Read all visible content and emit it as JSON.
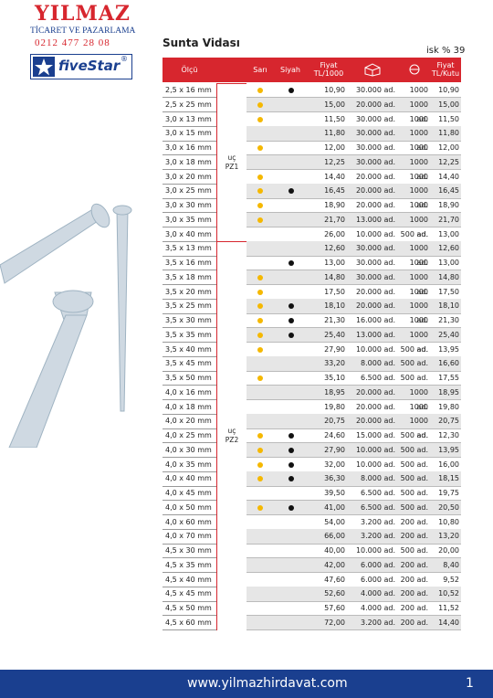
{
  "header": {
    "brand": "YILMAZ",
    "subtitle": "TİCARET VE PAZARLAMA",
    "phone": "0212 477 28 08",
    "logo": "fiveStar",
    "logo_mark": "®"
  },
  "title": "Sunta Vidası",
  "discount": "isk % 39",
  "table": {
    "columns": {
      "size": "Ölçü",
      "yellow": "Sarı",
      "black": "Siyah",
      "price_per_1000": "Fiyat TL/1000",
      "price_per_box": "Fiyat TL/Kutu"
    },
    "groups": [
      {
        "label": "uç",
        "code": "PZ1",
        "rows": [
          [
            "2,5 x 16 mm",
            true,
            true,
            "10,90",
            "30.000 ad.",
            "1000 ad.",
            "10,90"
          ],
          [
            "2,5 x 25 mm",
            true,
            false,
            "15,00",
            "20.000 ad.",
            "1000 ad.",
            "15,00"
          ],
          [
            "3,0 x 13 mm",
            true,
            false,
            "11,50",
            "30.000 ad.",
            "1000 ad.",
            "11,50"
          ],
          [
            "3,0 x 15 mm",
            false,
            false,
            "11,80",
            "30.000 ad.",
            "1000 ad.",
            "11,80"
          ],
          [
            "3,0 x 16 mm",
            true,
            false,
            "12,00",
            "30.000 ad.",
            "1000 ad.",
            "12,00"
          ],
          [
            "3,0 x 18 mm",
            false,
            false,
            "12,25",
            "30.000 ad.",
            "1000 ad.",
            "12,25"
          ],
          [
            "3,0 x 20 mm",
            true,
            false,
            "14,40",
            "20.000 ad.",
            "1000 ad.",
            "14,40"
          ],
          [
            "3,0 x 25 mm",
            true,
            true,
            "16,45",
            "20.000 ad.",
            "1000 ad.",
            "16,45"
          ],
          [
            "3,0 x 30 mm",
            true,
            false,
            "18,90",
            "20.000 ad.",
            "1000 ad.",
            "18,90"
          ],
          [
            "3,0 x 35 mm",
            true,
            false,
            "21,70",
            "13.000 ad.",
            "1000 ad.",
            "21,70"
          ],
          [
            "3,0 x 40 mm",
            false,
            false,
            "26,00",
            "10.000 ad.",
            "500 ad.",
            "13,00"
          ]
        ]
      },
      {
        "label": "uç",
        "code": "PZ2",
        "rows": [
          [
            "3,5 x 13 mm",
            false,
            false,
            "12,60",
            "30.000 ad.",
            "1000 ad.",
            "12,60"
          ],
          [
            "3,5 x 16 mm",
            false,
            true,
            "13,00",
            "30.000 ad.",
            "1000 ad.",
            "13,00"
          ],
          [
            "3,5 x 18 mm",
            true,
            false,
            "14,80",
            "30.000 ad.",
            "1000 ad.",
            "14,80"
          ],
          [
            "3,5 x 20 mm",
            true,
            false,
            "17,50",
            "20.000 ad.",
            "1000 ad.",
            "17,50"
          ],
          [
            "3,5 x 25 mm",
            true,
            true,
            "18,10",
            "20.000 ad.",
            "1000 ad.",
            "18,10"
          ],
          [
            "3,5 x 30 mm",
            true,
            true,
            "21,30",
            "16.000 ad.",
            "1000 ad.",
            "21,30"
          ],
          [
            "3,5 x 35 mm",
            true,
            true,
            "25,40",
            "13.000 ad.",
            "1000 ad.",
            "25,40"
          ],
          [
            "3,5 x 40 mm",
            true,
            false,
            "27,90",
            "10.000 ad.",
            "500 ad.",
            "13,95"
          ],
          [
            "3,5 x 45 mm",
            false,
            false,
            "33,20",
            "8.000 ad.",
            "500 ad.",
            "16,60"
          ],
          [
            "3,5 x 50 mm",
            true,
            false,
            "35,10",
            "6.500 ad.",
            "500 ad.",
            "17,55"
          ],
          [
            "4,0 x 16 mm",
            false,
            false,
            "18,95",
            "20.000 ad.",
            "1000 ad.",
            "18,95"
          ],
          [
            "4,0 x 18 mm",
            false,
            false,
            "19,80",
            "20.000 ad.",
            "1000 ad.",
            "19,80"
          ],
          [
            "4,0 x 20 mm",
            false,
            false,
            "20,75",
            "20.000 ad.",
            "1000 ad.",
            "20,75"
          ],
          [
            "4,0 x 25 mm",
            true,
            true,
            "24,60",
            "15.000 ad.",
            "500 ad.",
            "12,30"
          ],
          [
            "4,0 x 30 mm",
            true,
            true,
            "27,90",
            "10.000 ad.",
            "500 ad.",
            "13,95"
          ],
          [
            "4,0 x 35 mm",
            true,
            true,
            "32,00",
            "10.000 ad.",
            "500 ad.",
            "16,00"
          ],
          [
            "4,0 x 40 mm",
            true,
            true,
            "36,30",
            "8.000 ad.",
            "500 ad.",
            "18,15"
          ],
          [
            "4,0 x 45 mm",
            false,
            false,
            "39,50",
            "6.500 ad.",
            "500 ad.",
            "19,75"
          ],
          [
            "4,0 x 50 mm",
            true,
            true,
            "41,00",
            "6.500 ad.",
            "500 ad.",
            "20,50"
          ],
          [
            "4,0 x 60 mm",
            false,
            false,
            "54,00",
            "3.200 ad.",
            "200 ad.",
            "10,80"
          ],
          [
            "4,0 x 70 mm",
            false,
            false,
            "66,00",
            "3.200 ad.",
            "200 ad.",
            "13,20"
          ],
          [
            "4,5 x 30 mm",
            false,
            false,
            "40,00",
            "10.000 ad.",
            "500 ad.",
            "20,00"
          ],
          [
            "4,5 x 35 mm",
            false,
            false,
            "42,00",
            "6.000 ad.",
            "200 ad.",
            "8,40"
          ],
          [
            "4,5 x 40 mm",
            false,
            false,
            "47,60",
            "6.000 ad.",
            "200 ad.",
            "9,52"
          ],
          [
            "4,5 x 45 mm",
            false,
            false,
            "52,60",
            "4.000 ad.",
            "200 ad.",
            "10,52"
          ],
          [
            "4,5 x 50 mm",
            false,
            false,
            "57,60",
            "4.000 ad.",
            "200 ad.",
            "11,52"
          ],
          [
            "4,5 x 60 mm",
            false,
            false,
            "72,00",
            "3.200 ad.",
            "200 ad.",
            "14,40"
          ]
        ]
      }
    ]
  },
  "footer": {
    "url": "www.yilmazhirdavat.com",
    "page": "1"
  }
}
